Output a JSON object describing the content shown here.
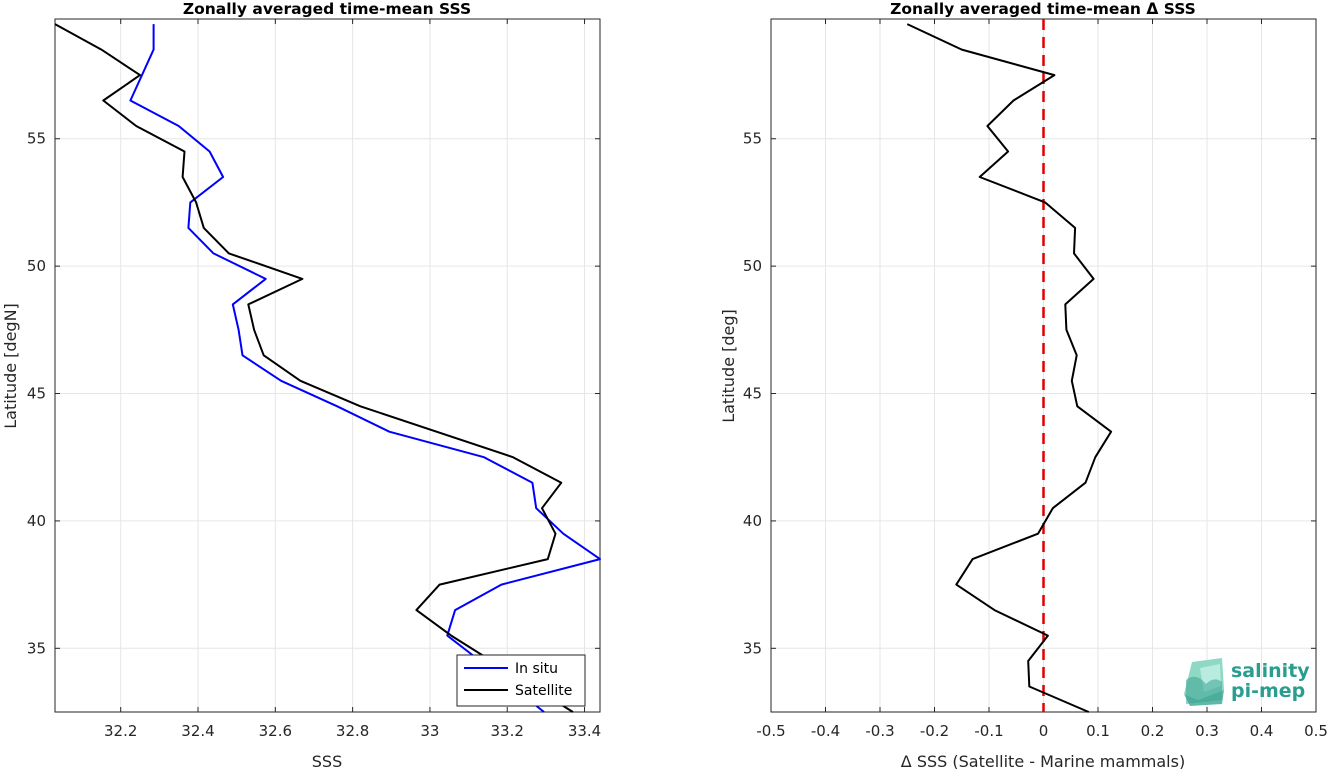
{
  "charts": [
    {
      "type": "line",
      "title": "Zonally averaged time-mean SSS",
      "xlabel": "SSS",
      "ylabel": "Latitude [degN]",
      "xlim": [
        32.03,
        33.44
      ],
      "ylim": [
        32.5,
        59.7
      ],
      "xticks": [
        32.2,
        32.4,
        32.6,
        32.8,
        33,
        33.2,
        33.4
      ],
      "xtick_labels": [
        "32.2",
        "32.4",
        "32.6",
        "32.8",
        "33",
        "33.2",
        "33.4"
      ],
      "yticks": [
        35,
        40,
        45,
        50,
        55
      ],
      "ytick_labels": [
        "35",
        "40",
        "45",
        "50",
        "55"
      ],
      "grid": true,
      "legend_position": "bottom-right",
      "series": [
        {
          "name": "In situ",
          "color": "#0000ff",
          "x": [
            32.285,
            32.285,
            32.225,
            32.35,
            32.43,
            32.465,
            32.38,
            32.375,
            32.44,
            32.575,
            32.49,
            32.505,
            32.515,
            32.615,
            32.76,
            32.895,
            33.14,
            33.265,
            33.275,
            33.345,
            33.44,
            33.185,
            33.065,
            33.045,
            33.13,
            33.295
          ],
          "y": [
            59.5,
            58.5,
            56.5,
            55.5,
            54.5,
            53.5,
            52.5,
            51.5,
            50.5,
            49.5,
            48.5,
            47.5,
            46.5,
            45.5,
            44.5,
            43.5,
            42.5,
            41.5,
            40.5,
            39.5,
            38.5,
            37.5,
            36.5,
            35.5,
            34.5,
            32.5
          ]
        },
        {
          "name": "Satellite",
          "color": "#000000",
          "x": [
            32.03,
            32.15,
            32.25,
            32.155,
            32.24,
            32.365,
            32.36,
            32.395,
            32.415,
            32.48,
            32.67,
            32.53,
            32.545,
            32.57,
            32.665,
            32.82,
            33.215,
            33.34,
            33.29,
            33.325,
            33.305,
            33.025,
            32.965,
            33.055,
            33.37
          ],
          "y": [
            59.5,
            58.5,
            57.5,
            56.5,
            55.5,
            54.5,
            53.5,
            52.5,
            51.5,
            50.5,
            49.5,
            48.5,
            47.5,
            46.5,
            45.5,
            44.5,
            42.5,
            41.5,
            40.5,
            39.5,
            38.5,
            37.5,
            36.5,
            35.5,
            32.5
          ]
        }
      ]
    },
    {
      "type": "line",
      "title": "Zonally averaged time-mean Δ SSS",
      "xlabel": "Δ SSS (Satellite - Marine mammals)",
      "ylabel": "Latitude [deg]",
      "xlim": [
        -0.5,
        0.5
      ],
      "ylim": [
        32.5,
        59.7
      ],
      "xticks": [
        -0.5,
        -0.4,
        -0.3,
        -0.2,
        -0.1,
        0,
        0.1,
        0.2,
        0.3,
        0.4,
        0.5
      ],
      "xtick_labels": [
        "-0.5",
        "-0.4",
        "-0.3",
        "-0.2",
        "-0.1",
        "0",
        "0.1",
        "0.2",
        "0.3",
        "0.4",
        "0.5"
      ],
      "yticks": [
        35,
        40,
        45,
        50,
        55
      ],
      "ytick_labels": [
        "35",
        "40",
        "45",
        "50",
        "55"
      ],
      "grid": true,
      "reference_line": {
        "x": 0,
        "color": "#e00000",
        "style": "dashed"
      },
      "series": [
        {
          "name": "",
          "color": "#000000",
          "x": [
            -0.25,
            -0.15,
            0.02,
            -0.055,
            -0.103,
            -0.065,
            -0.117,
            0.003,
            0.058,
            0.056,
            0.092,
            0.04,
            0.042,
            0.061,
            0.052,
            0.062,
            0.124,
            0.095,
            0.077,
            0.017,
            -0.01,
            -0.13,
            -0.16,
            -0.09,
            0.008,
            -0.028,
            -0.026,
            0.083
          ],
          "y": [
            59.5,
            58.5,
            57.5,
            56.5,
            55.5,
            54.5,
            53.5,
            52.5,
            51.5,
            50.5,
            49.5,
            48.5,
            47.5,
            46.5,
            45.5,
            44.5,
            43.5,
            42.5,
            41.5,
            40.5,
            39.5,
            38.5,
            37.5,
            36.5,
            35.5,
            34.5,
            33.5,
            32.5
          ]
        }
      ]
    }
  ],
  "legend": {
    "entries": [
      "In situ",
      "Satellite"
    ]
  },
  "logo": {
    "line1": "salinity",
    "line2": "pi-mep"
  }
}
